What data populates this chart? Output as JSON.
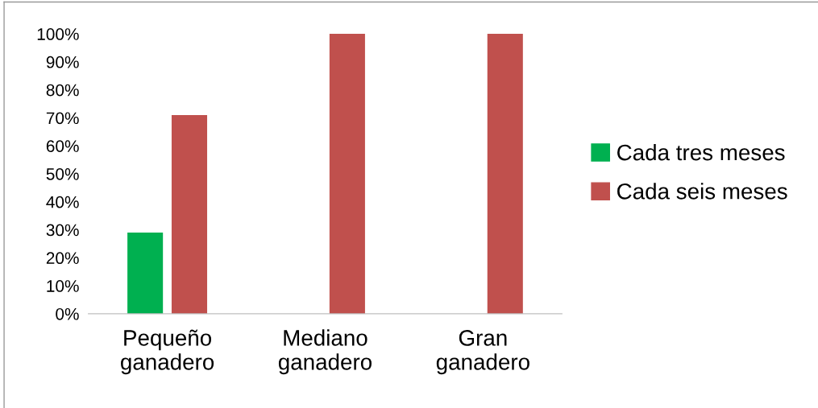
{
  "chart_data": {
    "type": "bar",
    "categories": [
      "Pequeño\nganadero",
      "Mediano\nganadero",
      "Gran\nganadero"
    ],
    "series": [
      {
        "name": "Cada tres meses",
        "color": "#00b050",
        "values": [
          29,
          0,
          0
        ]
      },
      {
        "name": "Cada seis meses",
        "color": "#c0504d",
        "values": [
          71,
          100,
          100
        ]
      }
    ],
    "ylim": [
      0,
      100
    ],
    "yticks": [
      {
        "value": 0,
        "label": "0%"
      },
      {
        "value": 10,
        "label": "10%"
      },
      {
        "value": 20,
        "label": "20%"
      },
      {
        "value": 30,
        "label": "30%"
      },
      {
        "value": 40,
        "label": "40%"
      },
      {
        "value": 50,
        "label": "50%"
      },
      {
        "value": 60,
        "label": "60%"
      },
      {
        "value": 70,
        "label": "70%"
      },
      {
        "value": 80,
        "label": "80%"
      },
      {
        "value": 90,
        "label": "90%"
      },
      {
        "value": 100,
        "label": "100%"
      }
    ],
    "grid": false,
    "legend": "right"
  }
}
